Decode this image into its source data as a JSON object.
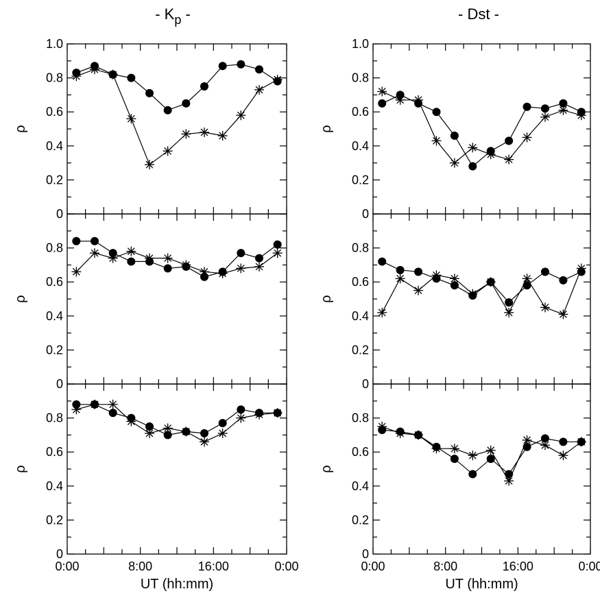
{
  "columns": [
    {
      "title_main": "- K",
      "title_sub": "p",
      "title_end": " -"
    },
    {
      "title_main": "- Dst -",
      "title_sub": "",
      "title_end": ""
    }
  ],
  "chart_data": [
    {
      "type": "line",
      "column": 0,
      "row": 0,
      "ylabel": "ρ",
      "xlabel": "",
      "ylim": [
        0,
        1.0
      ],
      "yticks": [
        "0",
        "0.2",
        "0.4",
        "0.6",
        "0.8",
        "1.0"
      ],
      "x": [
        1,
        3,
        5,
        7,
        9,
        11,
        13,
        15,
        17,
        19,
        21,
        23
      ],
      "series": [
        {
          "marker": "dot",
          "values": [
            0.83,
            0.87,
            0.82,
            0.8,
            0.71,
            0.61,
            0.65,
            0.75,
            0.87,
            0.88,
            0.85,
            0.78
          ]
        },
        {
          "marker": "star",
          "values": [
            0.81,
            0.85,
            0.82,
            0.56,
            0.29,
            0.37,
            0.47,
            0.48,
            0.46,
            0.58,
            0.73,
            0.79
          ]
        }
      ]
    },
    {
      "type": "line",
      "column": 0,
      "row": 1,
      "ylabel": "ρ",
      "xlabel": "",
      "ylim": [
        0,
        1.0
      ],
      "yticks": [
        "0",
        "0.2",
        "0.4",
        "0.6",
        "0.8"
      ],
      "x": [
        1,
        3,
        5,
        7,
        9,
        11,
        13,
        15,
        17,
        19,
        21,
        23
      ],
      "series": [
        {
          "marker": "dot",
          "values": [
            0.84,
            0.84,
            0.77,
            0.72,
            0.72,
            0.68,
            0.69,
            0.63,
            0.66,
            0.77,
            0.74,
            0.82
          ]
        },
        {
          "marker": "star",
          "values": [
            0.66,
            0.77,
            0.74,
            0.78,
            0.74,
            0.74,
            0.7,
            0.66,
            0.65,
            0.68,
            0.69,
            0.77
          ]
        }
      ]
    },
    {
      "type": "line",
      "column": 0,
      "row": 2,
      "ylabel": "ρ",
      "xlabel": "UT (hh:mm)",
      "ylim": [
        0,
        1.0
      ],
      "yticks": [
        "0",
        "0.2",
        "0.4",
        "0.6",
        "0.8"
      ],
      "xticks": [
        "0:00",
        "8:00",
        "16:00",
        "0:00"
      ],
      "x": [
        1,
        3,
        5,
        7,
        9,
        11,
        13,
        15,
        17,
        19,
        21,
        23
      ],
      "series": [
        {
          "marker": "dot",
          "values": [
            0.88,
            0.88,
            0.83,
            0.8,
            0.75,
            0.7,
            0.72,
            0.71,
            0.77,
            0.85,
            0.83,
            0.83
          ]
        },
        {
          "marker": "star",
          "values": [
            0.85,
            0.88,
            0.88,
            0.78,
            0.71,
            0.74,
            0.72,
            0.66,
            0.71,
            0.8,
            0.82,
            0.83
          ]
        }
      ]
    },
    {
      "type": "line",
      "column": 1,
      "row": 0,
      "ylabel": "ρ",
      "xlabel": "",
      "ylim": [
        0,
        1.0
      ],
      "yticks": [
        "0",
        "0.2",
        "0.4",
        "0.6",
        "0.8",
        "1.0"
      ],
      "x": [
        1,
        3,
        5,
        7,
        9,
        11,
        13,
        15,
        17,
        19,
        21,
        23
      ],
      "series": [
        {
          "marker": "dot",
          "values": [
            0.65,
            0.7,
            0.65,
            0.6,
            0.46,
            0.28,
            0.37,
            0.43,
            0.63,
            0.62,
            0.65,
            0.6
          ]
        },
        {
          "marker": "star",
          "values": [
            0.72,
            0.67,
            0.67,
            0.43,
            0.3,
            0.39,
            0.35,
            0.32,
            0.45,
            0.57,
            0.61,
            0.58
          ]
        }
      ]
    },
    {
      "type": "line",
      "column": 1,
      "row": 1,
      "ylabel": "ρ",
      "xlabel": "",
      "ylim": [
        0,
        1.0
      ],
      "yticks": [
        "0",
        "0.2",
        "0.4",
        "0.6",
        "0.8"
      ],
      "x": [
        1,
        3,
        5,
        7,
        9,
        11,
        13,
        15,
        17,
        19,
        21,
        23
      ],
      "series": [
        {
          "marker": "dot",
          "values": [
            0.72,
            0.67,
            0.66,
            0.62,
            0.58,
            0.52,
            0.6,
            0.48,
            0.58,
            0.66,
            0.61,
            0.66
          ]
        },
        {
          "marker": "star",
          "values": [
            0.42,
            0.62,
            0.55,
            0.64,
            0.62,
            0.53,
            0.6,
            0.42,
            0.62,
            0.45,
            0.41,
            0.68
          ]
        }
      ]
    },
    {
      "type": "line",
      "column": 1,
      "row": 2,
      "ylabel": "ρ",
      "xlabel": "UT (hh:mm)",
      "ylim": [
        0,
        1.0
      ],
      "yticks": [
        "0",
        "0.2",
        "0.4",
        "0.6",
        "0.8"
      ],
      "xticks": [
        "0:00",
        "8:00",
        "16:00",
        "0:00"
      ],
      "x": [
        1,
        3,
        5,
        7,
        9,
        11,
        13,
        15,
        17,
        19,
        21,
        23
      ],
      "series": [
        {
          "marker": "dot",
          "values": [
            0.73,
            0.72,
            0.7,
            0.63,
            0.56,
            0.47,
            0.56,
            0.47,
            0.63,
            0.68,
            0.66,
            0.66
          ]
        },
        {
          "marker": "star",
          "values": [
            0.75,
            0.71,
            0.7,
            0.62,
            0.62,
            0.58,
            0.61,
            0.43,
            0.67,
            0.64,
            0.58,
            0.66
          ]
        }
      ]
    }
  ]
}
